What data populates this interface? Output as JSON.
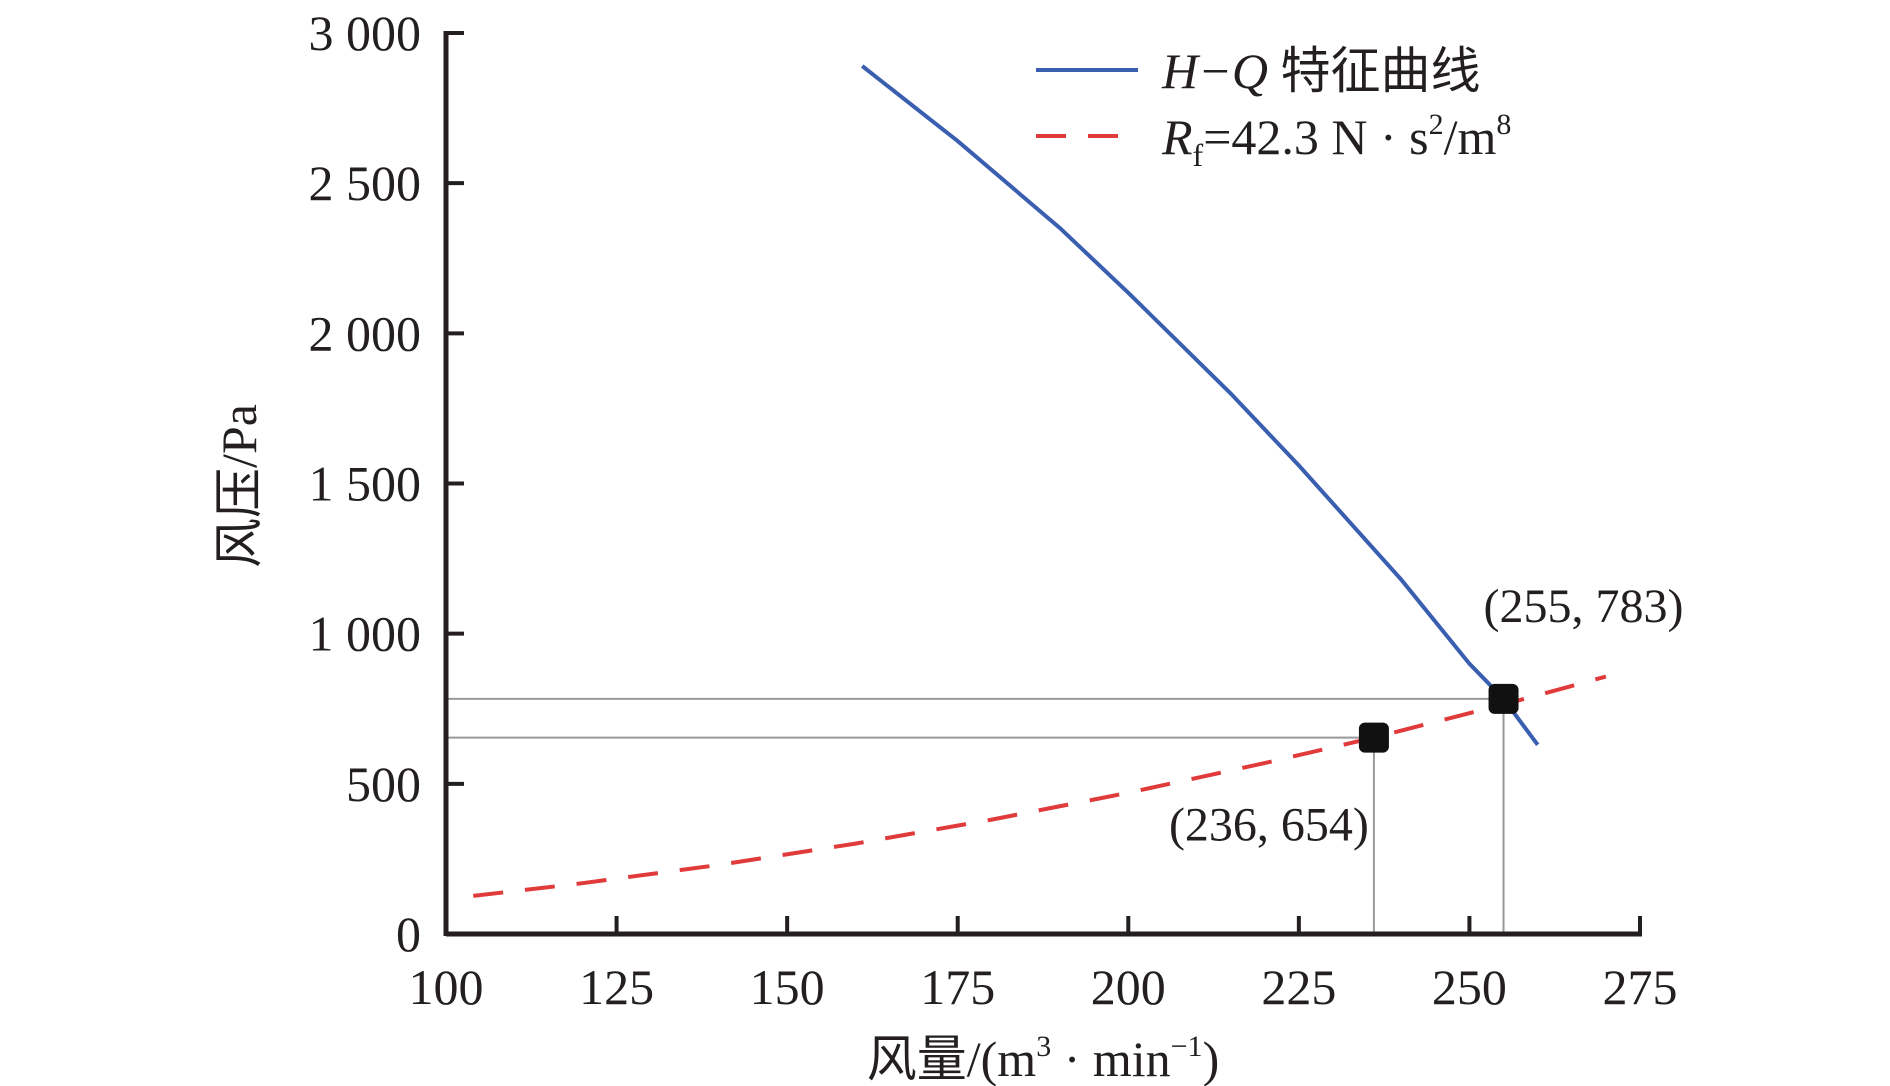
{
  "chart_data": {
    "type": "line",
    "title": "",
    "xlabel": "风量/(m³·min⁻¹)",
    "xlabel_parts": {
      "main": "风量/(m",
      "sup1": "3",
      "mid": " · min",
      "sup2": "−1",
      "end": ")"
    },
    "ylabel": "风压/Pa",
    "xlim": [
      100,
      275
    ],
    "ylim": [
      0,
      3000
    ],
    "xticks": [
      100,
      125,
      150,
      175,
      200,
      225,
      250,
      275
    ],
    "xtick_labels": [
      "100",
      "125",
      "150",
      "175",
      "200",
      "225",
      "250",
      "275"
    ],
    "yticks": [
      0,
      500,
      1000,
      1500,
      2000,
      2500,
      3000
    ],
    "ytick_labels": [
      "0",
      "500",
      "1 000",
      "1 500",
      "2 000",
      "2 500",
      "3 000"
    ],
    "grid": false,
    "legend_position": "top-right",
    "series": [
      {
        "name": "H−Q 特征曲线",
        "legend_parts": {
          "italic": "H−Q",
          "rest": " 特征曲线"
        },
        "style": "solid",
        "color": "#3a5fb0",
        "x": [
          161,
          175,
          190,
          200,
          215,
          225,
          240,
          250,
          255,
          260
        ],
        "y": [
          2890,
          2640,
          2350,
          2135,
          1800,
          1560,
          1180,
          900,
          783,
          630
        ]
      },
      {
        "name": "Rf=42.3 N·s²/m⁸",
        "legend_parts": {
          "R": "R",
          "sub": "f",
          "rest": "=42.3 N · s",
          "sup": "2",
          "rest2": "/m",
          "sup2": "8"
        },
        "style": "dashed",
        "color": "#e03a3a",
        "x": [
          104,
          120,
          140,
          160,
          180,
          200,
          220,
          236,
          255,
          270
        ],
        "y": [
          127,
          169,
          230,
          301,
          381,
          470,
          569,
          654,
          764,
          857
        ]
      }
    ],
    "points": [
      {
        "x": 236,
        "y": 654,
        "label": "(236, 654)"
      },
      {
        "x": 255,
        "y": 783,
        "label": "(255, 783)"
      }
    ]
  }
}
